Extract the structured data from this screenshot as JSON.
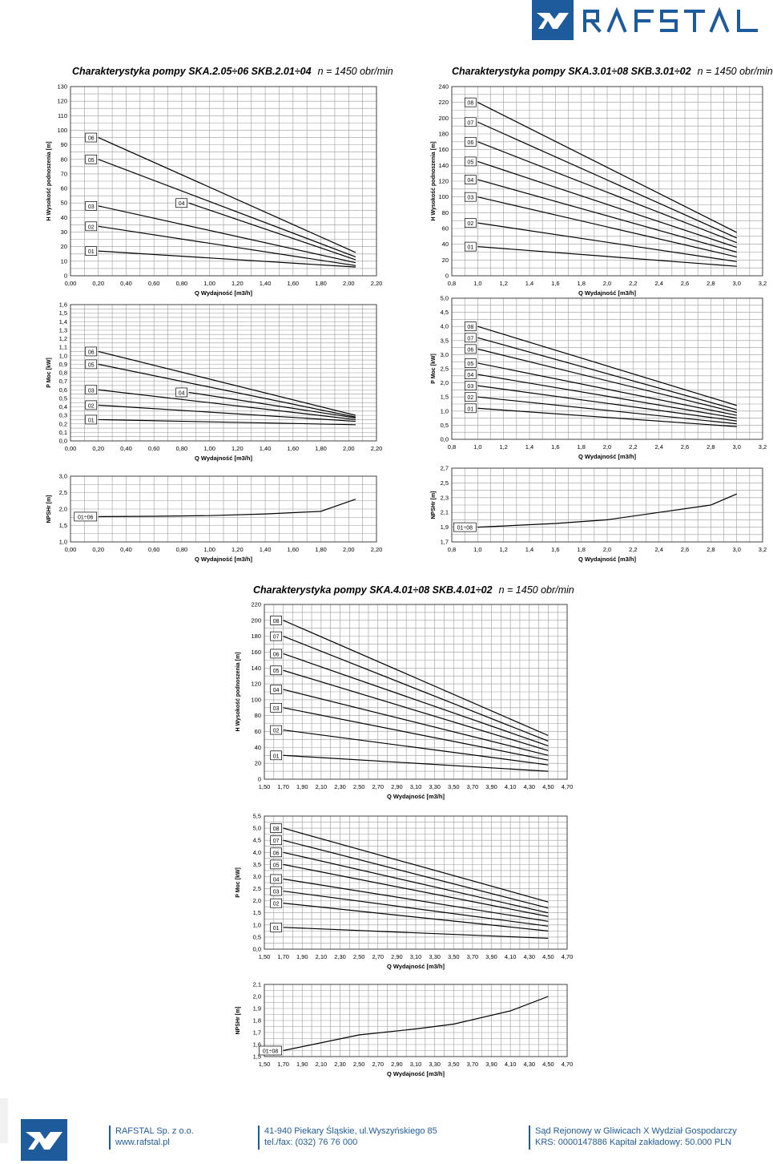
{
  "brand": {
    "name": "RAFSTAL",
    "color": "#1e5b9c"
  },
  "titles": [
    {
      "main": "Charakterystyka pompy SKA.2.05÷06  SKB.2.01÷04",
      "sub": "n = 1450 obr/min"
    },
    {
      "main": "Charakterystyka pompy SKA.3.01÷08  SKB.3.01÷02",
      "sub": "n = 1450 obr/min"
    },
    {
      "main": "Charakterystyka pompy SKA.4.01÷08  SKB.4.01÷02",
      "sub": "n = 1450 obr/min"
    }
  ],
  "footer": {
    "company": "RAFSTAL Sp. z o.o.",
    "website": "www.rafstal.pl",
    "address": "41-940 Piekary Śląskie, ul.Wyszyńskiego 85",
    "phone": "tel./fax: (032) 76 76 000",
    "court": "Sąd Rejonowy w Gliwicach X Wydział Gospodarczy",
    "krs": "KRS: 0000147886 Kapitał zakładowy: 50.000 PLN"
  },
  "chart_data": [
    {
      "id": "c1",
      "type": "line",
      "title": "",
      "ylabel": "H Wysokość podnoszenia [m]",
      "xlabel": "Q Wydajność [m3/h]",
      "x_ticks": [
        "0,00",
        "0,20",
        "0,40",
        "0,60",
        "0,80",
        "1,00",
        "1,20",
        "1,40",
        "1,60",
        "1,80",
        "2,00",
        "2,20"
      ],
      "xlim": [
        0,
        2.2
      ],
      "y_ticks": [
        "0",
        "10",
        "20",
        "30",
        "40",
        "50",
        "60",
        "70",
        "80",
        "90",
        "100",
        "110",
        "120",
        "130"
      ],
      "ylim": [
        0,
        130
      ],
      "series": [
        {
          "name": "06",
          "points": [
            [
              0.2,
              95
            ],
            [
              2.05,
              16
            ]
          ]
        },
        {
          "name": "05",
          "points": [
            [
              0.2,
              80
            ],
            [
              2.05,
              13
            ]
          ]
        },
        {
          "name": "04",
          "points": [
            [
              0.85,
              50
            ],
            [
              2.05,
              11
            ]
          ]
        },
        {
          "name": "03",
          "points": [
            [
              0.2,
              48
            ],
            [
              2.05,
              9
            ]
          ]
        },
        {
          "name": "02",
          "points": [
            [
              0.2,
              34
            ],
            [
              2.05,
              7
            ]
          ]
        },
        {
          "name": "01",
          "points": [
            [
              0.2,
              17
            ],
            [
              2.05,
              6
            ]
          ]
        }
      ]
    },
    {
      "id": "c2",
      "type": "line",
      "title": "",
      "ylabel": "H Wysokość podnoszenia [m]",
      "xlabel": "Q Wydajność [m3/h]",
      "x_ticks": [
        "0,8",
        "1,0",
        "1,2",
        "1,4",
        "1,6",
        "1,8",
        "2,0",
        "2,2",
        "2,4",
        "2,6",
        "2,8",
        "3,0",
        "3,2"
      ],
      "xlim": [
        0.8,
        3.2
      ],
      "y_ticks": [
        "0",
        "20",
        "40",
        "60",
        "80",
        "100",
        "120",
        "140",
        "160",
        "180",
        "200",
        "220",
        "240"
      ],
      "ylim": [
        0,
        240
      ],
      "series": [
        {
          "name": "08",
          "points": [
            [
              1.0,
              220
            ],
            [
              3.0,
              55
            ]
          ]
        },
        {
          "name": "07",
          "points": [
            [
              1.0,
              195
            ],
            [
              3.0,
              48
            ]
          ]
        },
        {
          "name": "06",
          "points": [
            [
              1.0,
              170
            ],
            [
              3.0,
              42
            ]
          ]
        },
        {
          "name": "05",
          "points": [
            [
              1.0,
              145
            ],
            [
              3.0,
              36
            ]
          ]
        },
        {
          "name": "04",
          "points": [
            [
              1.0,
              122
            ],
            [
              3.0,
              30
            ]
          ]
        },
        {
          "name": "03",
          "points": [
            [
              1.0,
              100
            ],
            [
              3.0,
              24
            ]
          ]
        },
        {
          "name": "02",
          "points": [
            [
              1.0,
              67
            ],
            [
              3.0,
              18
            ]
          ]
        },
        {
          "name": "01",
          "points": [
            [
              1.0,
              37
            ],
            [
              3.0,
              12
            ]
          ]
        }
      ]
    },
    {
      "id": "c3",
      "type": "line",
      "title": "",
      "ylabel": "P Moc [kW]",
      "xlabel": "Q Wydajność [m3/h]",
      "x_ticks": [
        "0,00",
        "0,20",
        "0,40",
        "0,60",
        "0,80",
        "1,00",
        "1,20",
        "1,40",
        "1,60",
        "1,80",
        "2,00",
        "2,20"
      ],
      "xlim": [
        0,
        2.2
      ],
      "y_ticks": [
        "0,0",
        "0,1",
        "0,2",
        "0,3",
        "0,4",
        "0,5",
        "0,6",
        "0,7",
        "0,8",
        "0,9",
        "1,0",
        "1,1",
        "1,2",
        "1,3",
        "1,4",
        "1,5",
        "1,6"
      ],
      "ylim": [
        0,
        1.6
      ],
      "series": [
        {
          "name": "06",
          "points": [
            [
              0.2,
              1.05
            ],
            [
              2.05,
              0.3
            ]
          ]
        },
        {
          "name": "05",
          "points": [
            [
              0.2,
              0.9
            ],
            [
              2.05,
              0.28
            ]
          ]
        },
        {
          "name": "04",
          "points": [
            [
              0.85,
              0.57
            ],
            [
              2.05,
              0.27
            ]
          ]
        },
        {
          "name": "03",
          "points": [
            [
              0.2,
              0.6
            ],
            [
              2.05,
              0.25
            ]
          ]
        },
        {
          "name": "02",
          "points": [
            [
              0.2,
              0.42
            ],
            [
              2.05,
              0.23
            ]
          ]
        },
        {
          "name": "01",
          "points": [
            [
              0.2,
              0.25
            ],
            [
              2.05,
              0.19
            ]
          ]
        }
      ]
    },
    {
      "id": "c4",
      "type": "line",
      "title": "",
      "ylabel": "P Moc [kW]",
      "xlabel": "Q Wydajność [m3/h]",
      "x_ticks": [
        "0,8",
        "1,0",
        "1,2",
        "1,4",
        "1,6",
        "1,8",
        "2,0",
        "2,2",
        "2,4",
        "2,6",
        "2,8",
        "3,0",
        "3,2"
      ],
      "xlim": [
        0.8,
        3.2
      ],
      "y_ticks": [
        "0,0",
        "0,5",
        "1,0",
        "1,5",
        "2,0",
        "2,5",
        "3,0",
        "3,5",
        "4,0",
        "4,5",
        "5,0"
      ],
      "ylim": [
        0,
        5
      ],
      "series": [
        {
          "name": "08",
          "points": [
            [
              1.0,
              4.0
            ],
            [
              3.0,
              1.2
            ]
          ]
        },
        {
          "name": "07",
          "points": [
            [
              1.0,
              3.6
            ],
            [
              3.0,
              1.05
            ]
          ]
        },
        {
          "name": "06",
          "points": [
            [
              1.0,
              3.2
            ],
            [
              3.0,
              0.95
            ]
          ]
        },
        {
          "name": "05",
          "points": [
            [
              1.0,
              2.7
            ],
            [
              3.0,
              0.85
            ]
          ]
        },
        {
          "name": "04",
          "points": [
            [
              1.0,
              2.3
            ],
            [
              3.0,
              0.75
            ]
          ]
        },
        {
          "name": "03",
          "points": [
            [
              1.0,
              1.9
            ],
            [
              3.0,
              0.65
            ]
          ]
        },
        {
          "name": "02",
          "points": [
            [
              1.0,
              1.5
            ],
            [
              3.0,
              0.55
            ]
          ]
        },
        {
          "name": "01",
          "points": [
            [
              1.0,
              1.1
            ],
            [
              3.0,
              0.45
            ]
          ]
        }
      ]
    },
    {
      "id": "c5",
      "type": "line",
      "title": "",
      "ylabel": "NPSHr [m]",
      "xlabel": "Q Wydajność [m3/h]",
      "x_ticks": [
        "0,00",
        "0,20",
        "0,40",
        "0,60",
        "0,80",
        "1,00",
        "1,20",
        "1,40",
        "1,60",
        "1,80",
        "2,00",
        "2,20"
      ],
      "xlim": [
        0,
        2.2
      ],
      "y_ticks": [
        "1,0",
        "1,5",
        "2,0",
        "2,5",
        "3,0"
      ],
      "ylim": [
        1.0,
        3.0
      ],
      "series": [
        {
          "name": "01÷06",
          "points": [
            [
              0.2,
              1.77
            ],
            [
              0.6,
              1.78
            ],
            [
              1.0,
              1.8
            ],
            [
              1.4,
              1.85
            ],
            [
              1.8,
              1.93
            ],
            [
              2.05,
              2.3
            ]
          ]
        }
      ]
    },
    {
      "id": "c6",
      "type": "line",
      "title": "",
      "ylabel": "NPSHr [m]",
      "xlabel": "Q Wydajność [m3/h]",
      "x_ticks": [
        "0,8",
        "1,0",
        "1,2",
        "1,4",
        "1,6",
        "1,8",
        "2,0",
        "2,2",
        "2,4",
        "2,6",
        "2,8",
        "3,0",
        "3,2"
      ],
      "xlim": [
        0.8,
        3.2
      ],
      "y_ticks": [
        "1,7",
        "1,9",
        "2,1",
        "2,3",
        "2,5",
        "2,7"
      ],
      "ylim": [
        1.7,
        2.7
      ],
      "series": [
        {
          "name": "01÷08",
          "points": [
            [
              1.0,
              1.9
            ],
            [
              1.6,
              1.95
            ],
            [
              2.0,
              2.0
            ],
            [
              2.4,
              2.1
            ],
            [
              2.8,
              2.2
            ],
            [
              3.0,
              2.35
            ]
          ]
        }
      ]
    },
    {
      "id": "c7",
      "type": "line",
      "title": "",
      "ylabel": "H Wysokość podnoszenia [m]",
      "xlabel": "Q Wydajność [m3/h]",
      "x_ticks": [
        "1,50",
        "1,70",
        "1,90",
        "2,10",
        "2,30",
        "2,50",
        "2,70",
        "2,90",
        "3,10",
        "3,30",
        "3,50",
        "3,70",
        "3,90",
        "4,10",
        "4,30",
        "4,50",
        "4,70"
      ],
      "xlim": [
        1.5,
        4.7
      ],
      "y_ticks": [
        "0",
        "20",
        "40",
        "60",
        "80",
        "100",
        "120",
        "140",
        "160",
        "180",
        "200",
        "220"
      ],
      "ylim": [
        0,
        220
      ],
      "series": [
        {
          "name": "08",
          "points": [
            [
              1.7,
              200
            ],
            [
              4.5,
              55
            ]
          ]
        },
        {
          "name": "07",
          "points": [
            [
              1.7,
              180
            ],
            [
              4.5,
              48
            ]
          ]
        },
        {
          "name": "06",
          "points": [
            [
              1.7,
              158
            ],
            [
              4.5,
              42
            ]
          ]
        },
        {
          "name": "05",
          "points": [
            [
              1.7,
              137
            ],
            [
              4.5,
              36
            ]
          ]
        },
        {
          "name": "04",
          "points": [
            [
              1.7,
              113
            ],
            [
              4.5,
              30
            ]
          ]
        },
        {
          "name": "03",
          "points": [
            [
              1.7,
              90
            ],
            [
              4.5,
              24
            ]
          ]
        },
        {
          "name": "02",
          "points": [
            [
              1.7,
              62
            ],
            [
              4.5,
              18
            ]
          ]
        },
        {
          "name": "01",
          "points": [
            [
              1.7,
              30
            ],
            [
              4.5,
              10
            ]
          ]
        }
      ]
    },
    {
      "id": "c8",
      "type": "line",
      "title": "",
      "ylabel": "P Moc [kW]",
      "xlabel": "Q Wydajność [m3/h]",
      "x_ticks": [
        "1,50",
        "1,70",
        "1,90",
        "2,10",
        "2,30",
        "2,50",
        "2,70",
        "2,90",
        "3,10",
        "3,30",
        "3,50",
        "3,70",
        "3,90",
        "4,10",
        "4,30",
        "4,50",
        "4,70"
      ],
      "xlim": [
        1.5,
        4.7
      ],
      "y_ticks": [
        "0,0",
        "0,5",
        "1,0",
        "1,5",
        "2,0",
        "2,5",
        "3,0",
        "3,5",
        "4,0",
        "4,5",
        "5,0",
        "5,5"
      ],
      "ylim": [
        0,
        5.5
      ],
      "series": [
        {
          "name": "08",
          "points": [
            [
              1.7,
              5.0
            ],
            [
              4.5,
              1.95
            ]
          ]
        },
        {
          "name": "07",
          "points": [
            [
              1.7,
              4.5
            ],
            [
              4.5,
              1.7
            ]
          ]
        },
        {
          "name": "06",
          "points": [
            [
              1.7,
              4.0
            ],
            [
              4.5,
              1.5
            ]
          ]
        },
        {
          "name": "05",
          "points": [
            [
              1.7,
              3.5
            ],
            [
              4.5,
              1.35
            ]
          ]
        },
        {
          "name": "04",
          "points": [
            [
              1.7,
              2.9
            ],
            [
              4.5,
              1.15
            ]
          ]
        },
        {
          "name": "03",
          "points": [
            [
              1.7,
              2.4
            ],
            [
              4.5,
              0.95
            ]
          ]
        },
        {
          "name": "02",
          "points": [
            [
              1.7,
              1.9
            ],
            [
              4.5,
              0.75
            ]
          ]
        },
        {
          "name": "01",
          "points": [
            [
              1.7,
              0.9
            ],
            [
              4.5,
              0.45
            ]
          ]
        }
      ]
    },
    {
      "id": "c9",
      "type": "line",
      "title": "",
      "ylabel": "NPSHr [m]",
      "xlabel": "Q Wydajność [m3/h]",
      "x_ticks": [
        "1,50",
        "1,70",
        "1,90",
        "2,10",
        "2,30",
        "2,50",
        "2,70",
        "2,90",
        "3,10",
        "3,30",
        "3,50",
        "3,70",
        "3,90",
        "4,10",
        "4,30",
        "4,50",
        "4,70"
      ],
      "xlim": [
        1.5,
        4.7
      ],
      "y_ticks": [
        "1,5",
        "1,6",
        "1,7",
        "1,8",
        "1,9",
        "2,0",
        "2,1"
      ],
      "ylim": [
        1.5,
        2.1
      ],
      "series": [
        {
          "name": "01÷08",
          "points": [
            [
              1.7,
              1.55
            ],
            [
              2.5,
              1.68
            ],
            [
              3.1,
              1.73
            ],
            [
              3.5,
              1.77
            ],
            [
              4.1,
              1.88
            ],
            [
              4.5,
              2.0
            ]
          ]
        }
      ]
    }
  ]
}
